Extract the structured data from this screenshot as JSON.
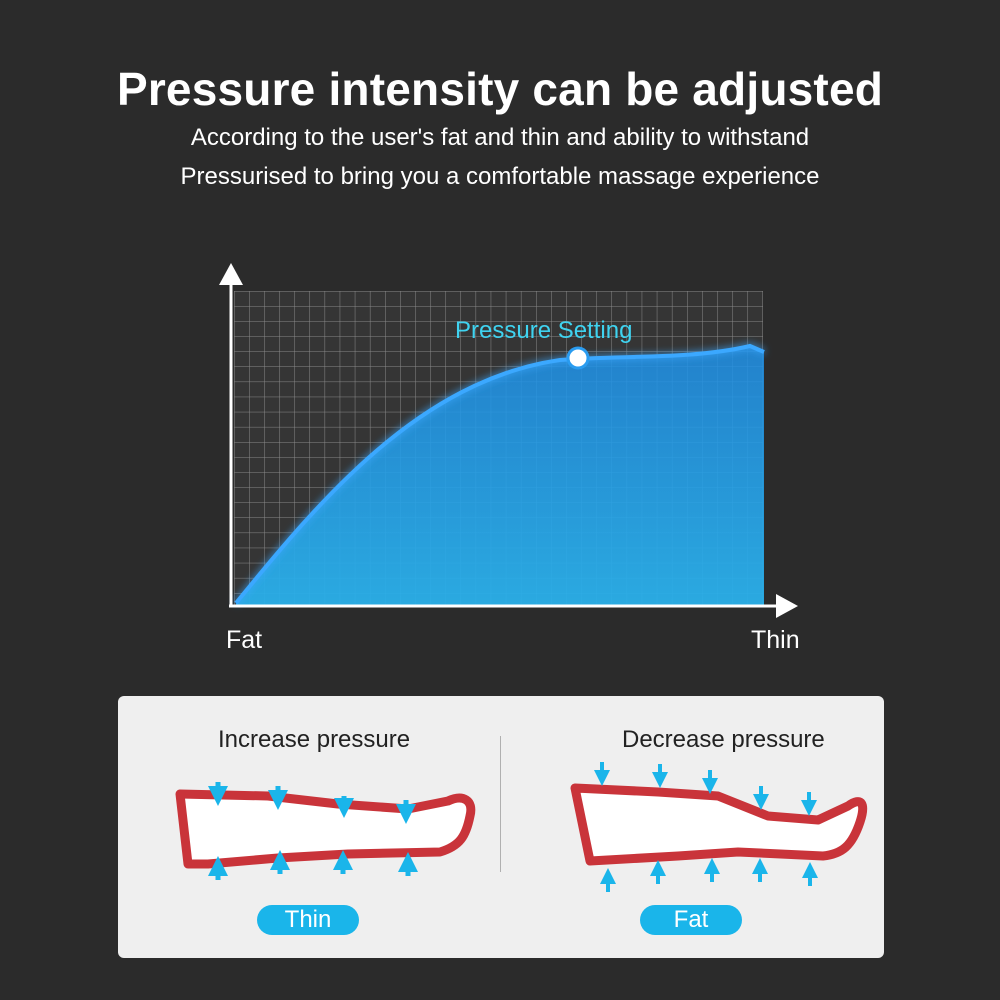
{
  "header": {
    "title": "Pressure intensity can be adjusted",
    "subtitle_line1": "According to the user's fat and thin and ability to withstand",
    "subtitle_line2": "Pressurised to bring you a comfortable massage experience"
  },
  "graph": {
    "curve_label": "Pressure Setting",
    "x_start_label": "Fat",
    "x_end_label": "Thin",
    "accent_color": "#1fa3f0",
    "label_color": "#3fd3f0"
  },
  "comparison": {
    "left": {
      "heading": "Increase pressure",
      "badge": "Thin",
      "arrow_direction": "inward"
    },
    "right": {
      "heading": "Decrease pressure",
      "badge": "Fat",
      "arrow_direction": "outward"
    },
    "leg_color": "#c9343a",
    "arrow_color": "#1ab5ea"
  }
}
